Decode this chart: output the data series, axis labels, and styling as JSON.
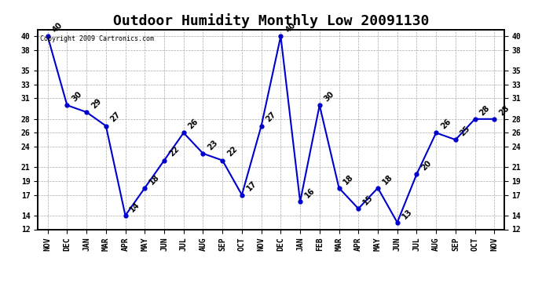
{
  "title": "Outdoor Humidity Monthly Low 20091130",
  "copyright": "Copyright 2009 Cartronics.com",
  "months": [
    "NOV",
    "DEC",
    "JAN",
    "MAR",
    "APR",
    "MAY",
    "JUN",
    "JUL",
    "AUG",
    "SEP",
    "OCT",
    "NOV",
    "DEC",
    "JAN",
    "FEB",
    "MAR",
    "APR",
    "MAY",
    "JUN",
    "JUL",
    "AUG",
    "SEP",
    "OCT",
    "NOV"
  ],
  "values": [
    40,
    30,
    29,
    27,
    14,
    18,
    22,
    26,
    23,
    22,
    17,
    27,
    40,
    16,
    30,
    18,
    15,
    18,
    13,
    20,
    26,
    25,
    28,
    28
  ],
  "ylim": [
    12,
    41
  ],
  "yticks": [
    12,
    14,
    17,
    19,
    21,
    24,
    26,
    28,
    31,
    33,
    35,
    38,
    40
  ],
  "line_color": "#0000cc",
  "marker_color": "#0000cc",
  "bg_color": "#ffffff",
  "grid_color": "#aaaaaa",
  "title_fontsize": 13,
  "label_fontsize": 7,
  "annot_fontsize": 7
}
